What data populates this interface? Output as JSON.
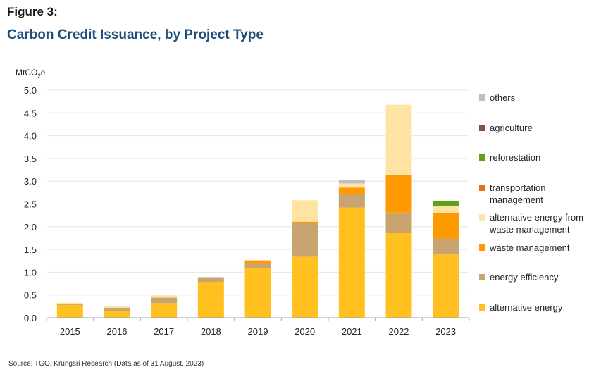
{
  "figure_label": "Figure 3:",
  "title": "Carbon Credit Issuance, by Project Type",
  "unit": {
    "prefix": "MtCO",
    "sub": "2",
    "suffix": "e"
  },
  "source": "Source: TGO, Krungsri Research (Data as of 31 August, 2023)",
  "chart_data": {
    "type": "bar",
    "stacked": true,
    "categories": [
      "2015",
      "2016",
      "2017",
      "2018",
      "2019",
      "2020",
      "2021",
      "2022",
      "2023"
    ],
    "ylim": [
      0,
      5.0
    ],
    "yticks": [
      "0.0",
      "0.5",
      "1.0",
      "1.5",
      "2.0",
      "2.5",
      "3.0",
      "3.5",
      "4.0",
      "4.5",
      "5.0"
    ],
    "ylabel": "MtCO2e",
    "grid": true,
    "legend_position": "right",
    "series": [
      {
        "name": "alternative energy",
        "color": "#FFC020",
        "values": [
          0.28,
          0.15,
          0.32,
          0.79,
          1.09,
          1.34,
          2.42,
          1.87,
          1.39
        ]
      },
      {
        "name": "energy efficiency",
        "color": "#C9A46E",
        "values": [
          0.03,
          0.07,
          0.12,
          0.1,
          0.11,
          0.75,
          0.3,
          0.44,
          0.35
        ]
      },
      {
        "name": "waste management",
        "color": "#FF9900",
        "values": [
          0.0,
          0.0,
          0.0,
          0.0,
          0.06,
          0.02,
          0.14,
          0.83,
          0.56
        ]
      },
      {
        "name": "alternative energy from waste management",
        "color": "#FFE3A3",
        "values": [
          0.02,
          0.03,
          0.05,
          0.0,
          0.0,
          0.47,
          0.09,
          1.54,
          0.16
        ]
      },
      {
        "name": "transportation management",
        "color": "#E0701A",
        "values": [
          0.0,
          0.0,
          0.0,
          0.0,
          0.0,
          0.0,
          0.0,
          0.0,
          0.0
        ]
      },
      {
        "name": "reforestation",
        "color": "#5FA01E",
        "values": [
          0.0,
          0.0,
          0.0,
          0.0,
          0.0,
          0.0,
          0.0,
          0.0,
          0.11
        ]
      },
      {
        "name": "agriculture",
        "color": "#7B5340",
        "values": [
          0.0,
          0.0,
          0.0,
          0.0,
          0.0,
          0.0,
          0.0,
          0.0,
          0.0
        ]
      },
      {
        "name": "others",
        "color": "#BFBFBF",
        "values": [
          0.0,
          0.0,
          0.0,
          0.0,
          0.0,
          0.0,
          0.07,
          0.0,
          0.0
        ]
      }
    ]
  }
}
